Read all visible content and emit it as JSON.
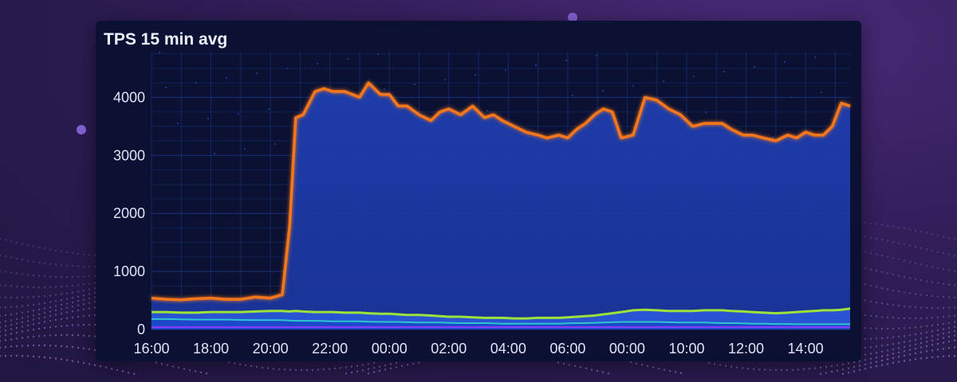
{
  "panel": {
    "title": "TPS 15 min avg"
  },
  "colors": {
    "background": "#2b1b52",
    "panel": "#0b1133",
    "area_fill": "#1f3fb0",
    "total_line": "#f5771f",
    "series_green": "#9ce23a",
    "series_teal": "#2ec4d0",
    "series_purple": "#8a3cff",
    "grid": "#1c3a8a"
  },
  "chart_data": {
    "type": "area",
    "title": "TPS 15 min avg",
    "xlabel": "",
    "ylabel": "",
    "x_ticks": [
      "16:00",
      "18:00",
      "20:00",
      "22:00",
      "00:00",
      "02:00",
      "04:00",
      "06:00",
      "00:00",
      "10:00",
      "12:00",
      "14:00"
    ],
    "y_ticks": [
      "0",
      "1000",
      "2000",
      "3000",
      "4000"
    ],
    "ylim": [
      0,
      4800
    ],
    "grid": true,
    "legend": "none",
    "x_hours": [
      0,
      0.5,
      1,
      1.5,
      2,
      2.5,
      3,
      3.5,
      4,
      4.4,
      4.65,
      4.85,
      5.1,
      5.5,
      5.8,
      6.1,
      6.5,
      7,
      7.3,
      7.7,
      8,
      8.3,
      8.6,
      9,
      9.4,
      9.7,
      10,
      10.4,
      10.8,
      11.2,
      11.5,
      11.8,
      12.2,
      12.6,
      13,
      13.3,
      13.7,
      14,
      14.3,
      14.6,
      14.9,
      15.2,
      15.5,
      15.8,
      16.2,
      16.6,
      17,
      17.4,
      17.8,
      18.2,
      18.6,
      18.9,
      19.2,
      19.5,
      19.9,
      20.2,
      20.6,
      21,
      21.4,
      21.7,
      22,
      22.3,
      22.6,
      22.9,
      23.2,
      23.5
    ],
    "series": [
      {
        "values": [
          540,
          520,
          510,
          530,
          540,
          520,
          520,
          560,
          540,
          600,
          1800,
          3650,
          3700,
          4100,
          4150,
          4100,
          4100,
          4000,
          4250,
          4050,
          4050,
          3850,
          3850,
          3700,
          3600,
          3750,
          3800,
          3700,
          3850,
          3650,
          3700,
          3600,
          3500,
          3400,
          3350,
          3300,
          3350,
          3300,
          3450,
          3550,
          3700,
          3800,
          3750,
          3300,
          3350,
          4000,
          3950,
          3800,
          3700,
          3500,
          3550,
          3550,
          3550,
          3450,
          3350,
          3350,
          3300,
          3250,
          3350,
          3300,
          3400,
          3350,
          3350,
          3500,
          3900,
          3850
        ]
      },
      {
        "values": [
          300,
          300,
          290,
          290,
          300,
          300,
          300,
          310,
          320,
          320,
          310,
          320,
          310,
          300,
          300,
          300,
          290,
          290,
          280,
          270,
          270,
          260,
          250,
          250,
          240,
          230,
          220,
          220,
          210,
          200,
          200,
          200,
          190,
          190,
          200,
          200,
          200,
          210,
          220,
          230,
          240,
          260,
          280,
          300,
          330,
          340,
          330,
          320,
          320,
          320,
          330,
          330,
          330,
          320,
          310,
          300,
          290,
          280,
          290,
          300,
          310,
          320,
          330,
          330,
          340,
          360
        ]
      },
      {
        "values": [
          180,
          180,
          175,
          170,
          170,
          170,
          165,
          160,
          160,
          160,
          155,
          150,
          150,
          150,
          145,
          140,
          140,
          140,
          135,
          130,
          130,
          130,
          125,
          120,
          120,
          120,
          115,
          110,
          110,
          110,
          105,
          100,
          100,
          100,
          100,
          100,
          100,
          105,
          110,
          110,
          115,
          120,
          125,
          130,
          130,
          130,
          130,
          125,
          120,
          120,
          120,
          115,
          110,
          110,
          105,
          100,
          100,
          95,
          95,
          90,
          90,
          90,
          90,
          90,
          90,
          90
        ]
      },
      {
        "values": [
          40,
          40,
          40,
          40,
          40,
          40,
          40,
          40,
          40,
          40,
          40,
          40,
          40,
          40,
          40,
          40,
          40,
          40,
          40,
          40,
          40,
          40,
          40,
          40,
          40,
          40,
          40,
          40,
          40,
          40,
          40,
          40,
          40,
          40,
          40,
          40,
          40,
          40,
          40,
          40,
          40,
          40,
          40,
          40,
          40,
          40,
          40,
          40,
          40,
          40,
          40,
          40,
          40,
          40,
          40,
          40,
          40,
          40,
          40,
          40,
          40,
          40,
          40,
          40,
          40,
          40
        ]
      }
    ]
  }
}
